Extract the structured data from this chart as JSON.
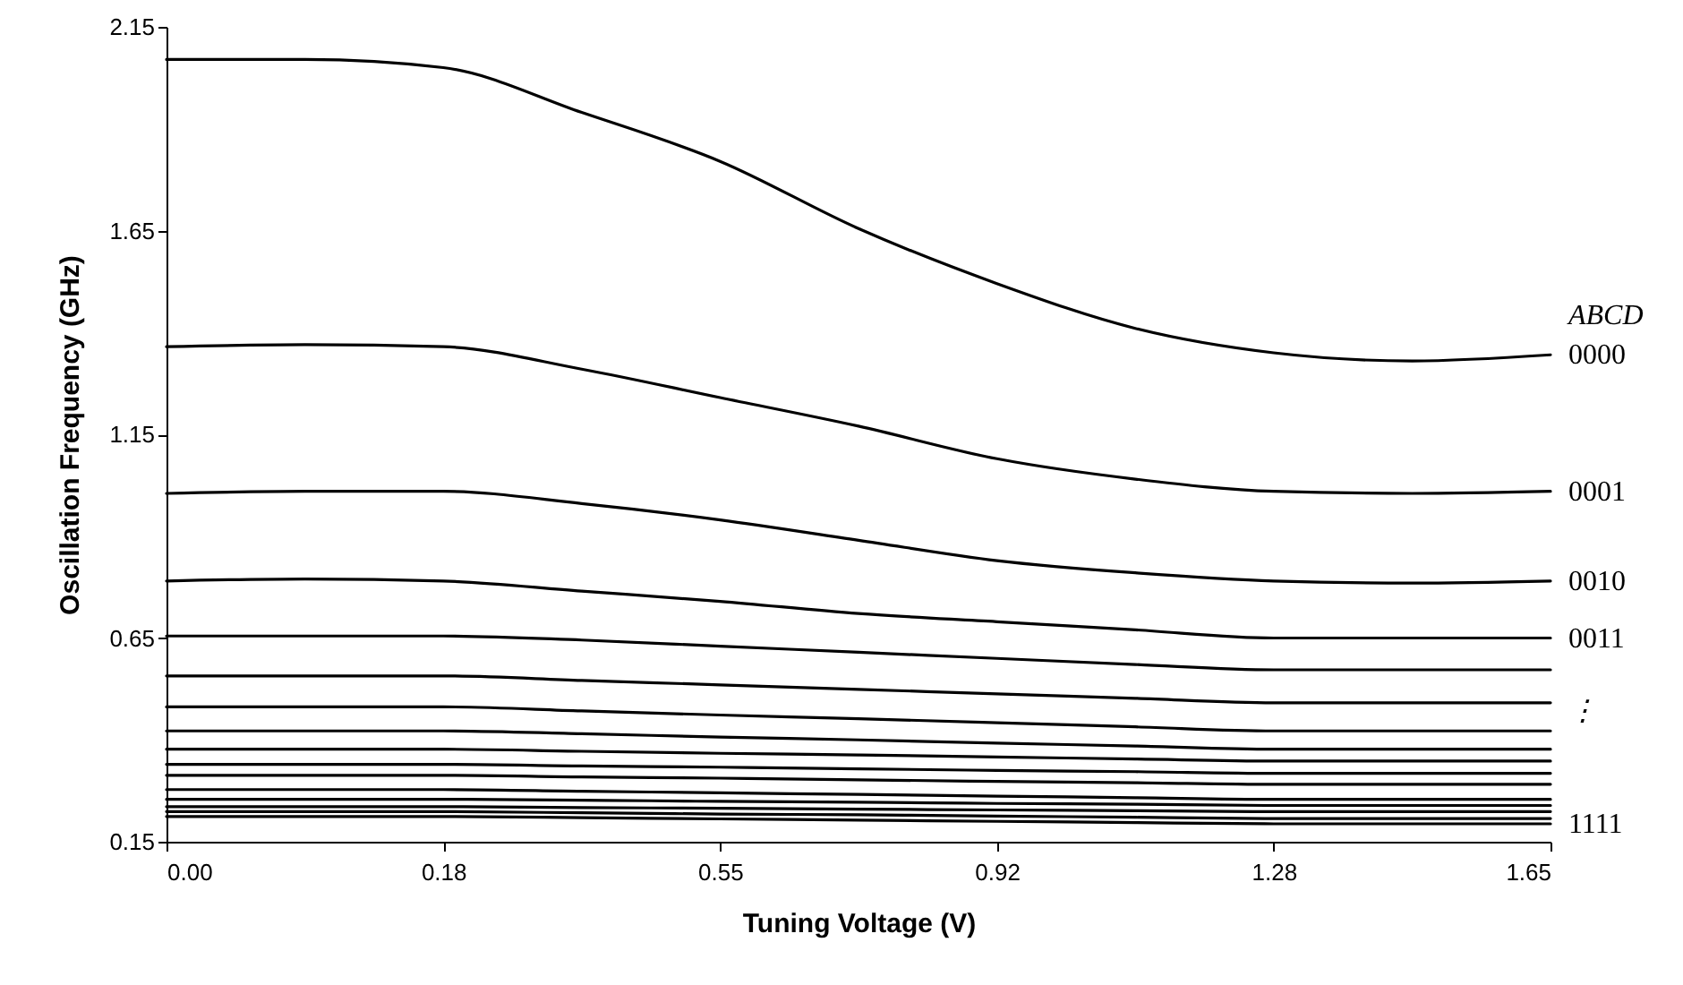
{
  "chart_data": {
    "type": "line",
    "xlabel": "Tuning Voltage (V)",
    "ylabel": "Oscillation Frequency (GHz)",
    "categories": [
      "0.00",
      null,
      "0.18",
      null,
      "0.55",
      null,
      "0.92",
      null,
      "1.28",
      null,
      "1.65"
    ],
    "ylim": [
      0.15,
      2.15
    ],
    "yticks": [
      0.15,
      0.65,
      1.15,
      1.65,
      2.15
    ],
    "annotations": [
      "ABCD",
      {
        "text": "⋮",
        "x": "1.65",
        "y": 0.47
      }
    ],
    "series": [
      {
        "name": "0000",
        "color": "#000000",
        "values": [
          2.07,
          2.07,
          2.05,
          1.94,
          1.82,
          1.655,
          1.52,
          1.41,
          1.35,
          1.33,
          1.345
        ]
      },
      {
        "name": "0001",
        "color": "#000000",
        "values": [
          1.365,
          1.37,
          1.365,
          1.31,
          1.24,
          1.17,
          1.09,
          1.04,
          1.01,
          1.005,
          1.01
        ]
      },
      {
        "name": "0010",
        "color": "#000000",
        "values": [
          1.005,
          1.01,
          1.01,
          0.98,
          0.94,
          0.89,
          0.84,
          0.81,
          0.79,
          0.785,
          0.79
        ]
      },
      {
        "name": "0011",
        "color": "#000000",
        "values": [
          0.79,
          0.795,
          0.79,
          0.765,
          0.74,
          0.71,
          0.69,
          0.67,
          0.65,
          0.65,
          0.65
        ]
      },
      {
        "color": "#000000",
        "values": [
          0.655,
          0.655,
          0.655,
          0.645,
          0.63,
          0.615,
          0.6,
          0.585,
          0.572,
          0.572,
          0.572
        ]
      },
      {
        "color": "#000000",
        "values": [
          0.557,
          0.557,
          0.557,
          0.546,
          0.535,
          0.524,
          0.513,
          0.502,
          0.491,
          0.491,
          0.491
        ]
      },
      {
        "color": "#000000",
        "values": [
          0.481,
          0.481,
          0.481,
          0.471,
          0.461,
          0.452,
          0.442,
          0.432,
          0.422,
          0.422,
          0.422
        ]
      },
      {
        "color": "#000000",
        "values": [
          0.422,
          0.422,
          0.422,
          0.415,
          0.407,
          0.4,
          0.392,
          0.385,
          0.377,
          0.377,
          0.377
        ]
      },
      {
        "color": "#000000",
        "values": [
          0.377,
          0.377,
          0.377,
          0.372,
          0.367,
          0.363,
          0.358,
          0.353,
          0.348,
          0.348,
          0.348
        ]
      },
      {
        "color": "#000000",
        "values": [
          0.34,
          0.34,
          0.34,
          0.336,
          0.333,
          0.329,
          0.325,
          0.322,
          0.318,
          0.318,
          0.318
        ]
      },
      {
        "color": "#000000",
        "values": [
          0.313,
          0.313,
          0.313,
          0.309,
          0.306,
          0.302,
          0.298,
          0.295,
          0.291,
          0.291,
          0.291
        ]
      },
      {
        "color": "#000000",
        "values": [
          0.278,
          0.278,
          0.278,
          0.274,
          0.27,
          0.266,
          0.262,
          0.258,
          0.254,
          0.254,
          0.254
        ]
      },
      {
        "color": "#000000",
        "values": [
          0.254,
          0.254,
          0.254,
          0.252,
          0.249,
          0.247,
          0.244,
          0.242,
          0.239,
          0.239,
          0.239
        ]
      },
      {
        "color": "#000000",
        "values": [
          0.236,
          0.236,
          0.236,
          0.234,
          0.232,
          0.23,
          0.228,
          0.226,
          0.224,
          0.224,
          0.224
        ]
      },
      {
        "color": "#000000",
        "values": [
          0.224,
          0.224,
          0.224,
          0.221,
          0.218,
          0.216,
          0.213,
          0.21,
          0.207,
          0.207,
          0.207
        ]
      },
      {
        "name": "1111",
        "color": "#000000",
        "values": [
          0.212,
          0.212,
          0.212,
          0.209,
          0.206,
          0.203,
          0.2,
          0.197,
          0.194,
          0.194,
          0.194
        ]
      }
    ]
  }
}
